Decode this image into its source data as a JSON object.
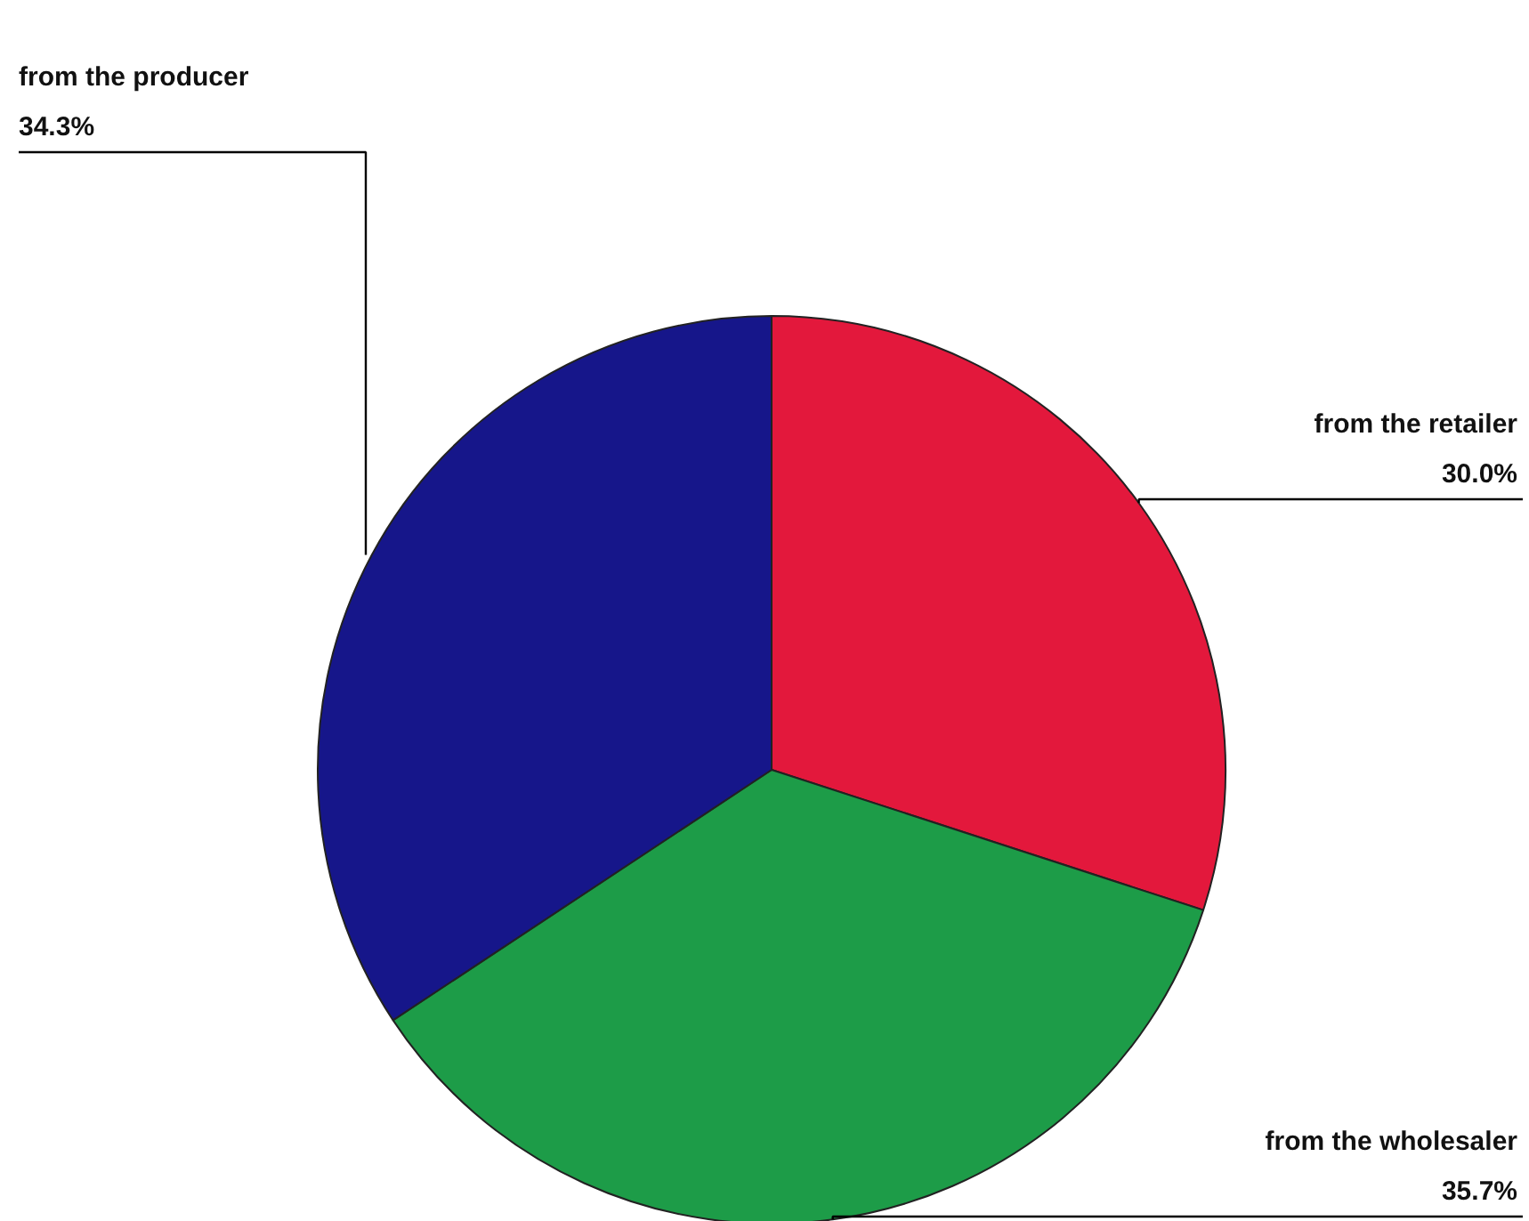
{
  "chart_data": {
    "type": "pie",
    "categories": [
      "from the retailer",
      "from the wholesaler",
      "from the producer"
    ],
    "values": [
      30.0,
      35.7,
      34.3
    ],
    "colors": [
      "#e3183c",
      "#1d9c48",
      "#16168a"
    ],
    "value_labels": [
      "30.0%",
      "35.7%",
      "34.3%"
    ]
  }
}
